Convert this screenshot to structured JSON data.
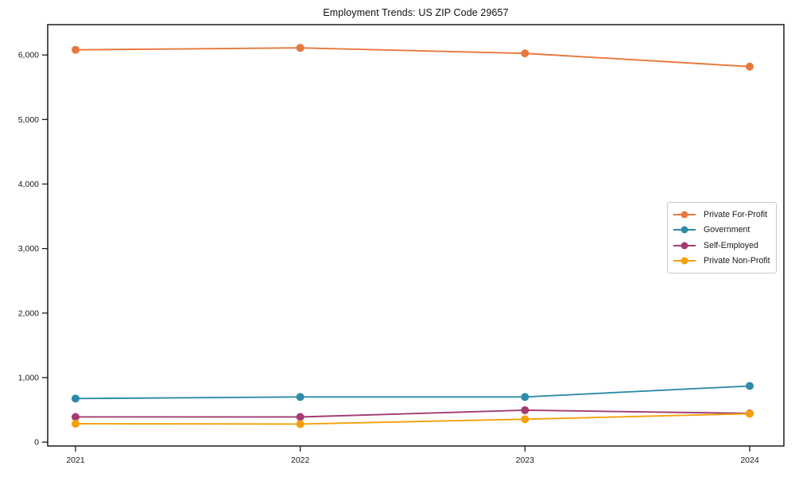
{
  "chart_data": {
    "type": "line",
    "title": "Employment Trends: US ZIP Code 29657",
    "categories": [
      "2021",
      "2022",
      "2023",
      "2024"
    ],
    "series": [
      {
        "name": "Private For-Profit",
        "color": "#e8783c",
        "values": [
          6080,
          6110,
          6025,
          5820
        ]
      },
      {
        "name": "Government",
        "color": "#2e8ba8",
        "values": [
          675,
          700,
          700,
          870
        ]
      },
      {
        "name": "Self-Employed",
        "color": "#a23b72",
        "values": [
          390,
          390,
          495,
          445
        ]
      },
      {
        "name": "Private Non-Profit",
        "color": "#f5a00a",
        "values": [
          285,
          280,
          355,
          440
        ]
      }
    ],
    "ylim": [
      -60,
      6470
    ],
    "yticks": [
      0,
      1000,
      2000,
      3000,
      4000,
      5000,
      6000
    ],
    "ytick_labels": [
      "0",
      "1,000",
      "2,000",
      "3,000",
      "4,000",
      "5,000",
      "6,000"
    ],
    "xlabel": "",
    "ylabel": "",
    "grid": false,
    "legend_position": "center-right",
    "axis_color": "#1a1a1a",
    "background": "#ffffff"
  }
}
